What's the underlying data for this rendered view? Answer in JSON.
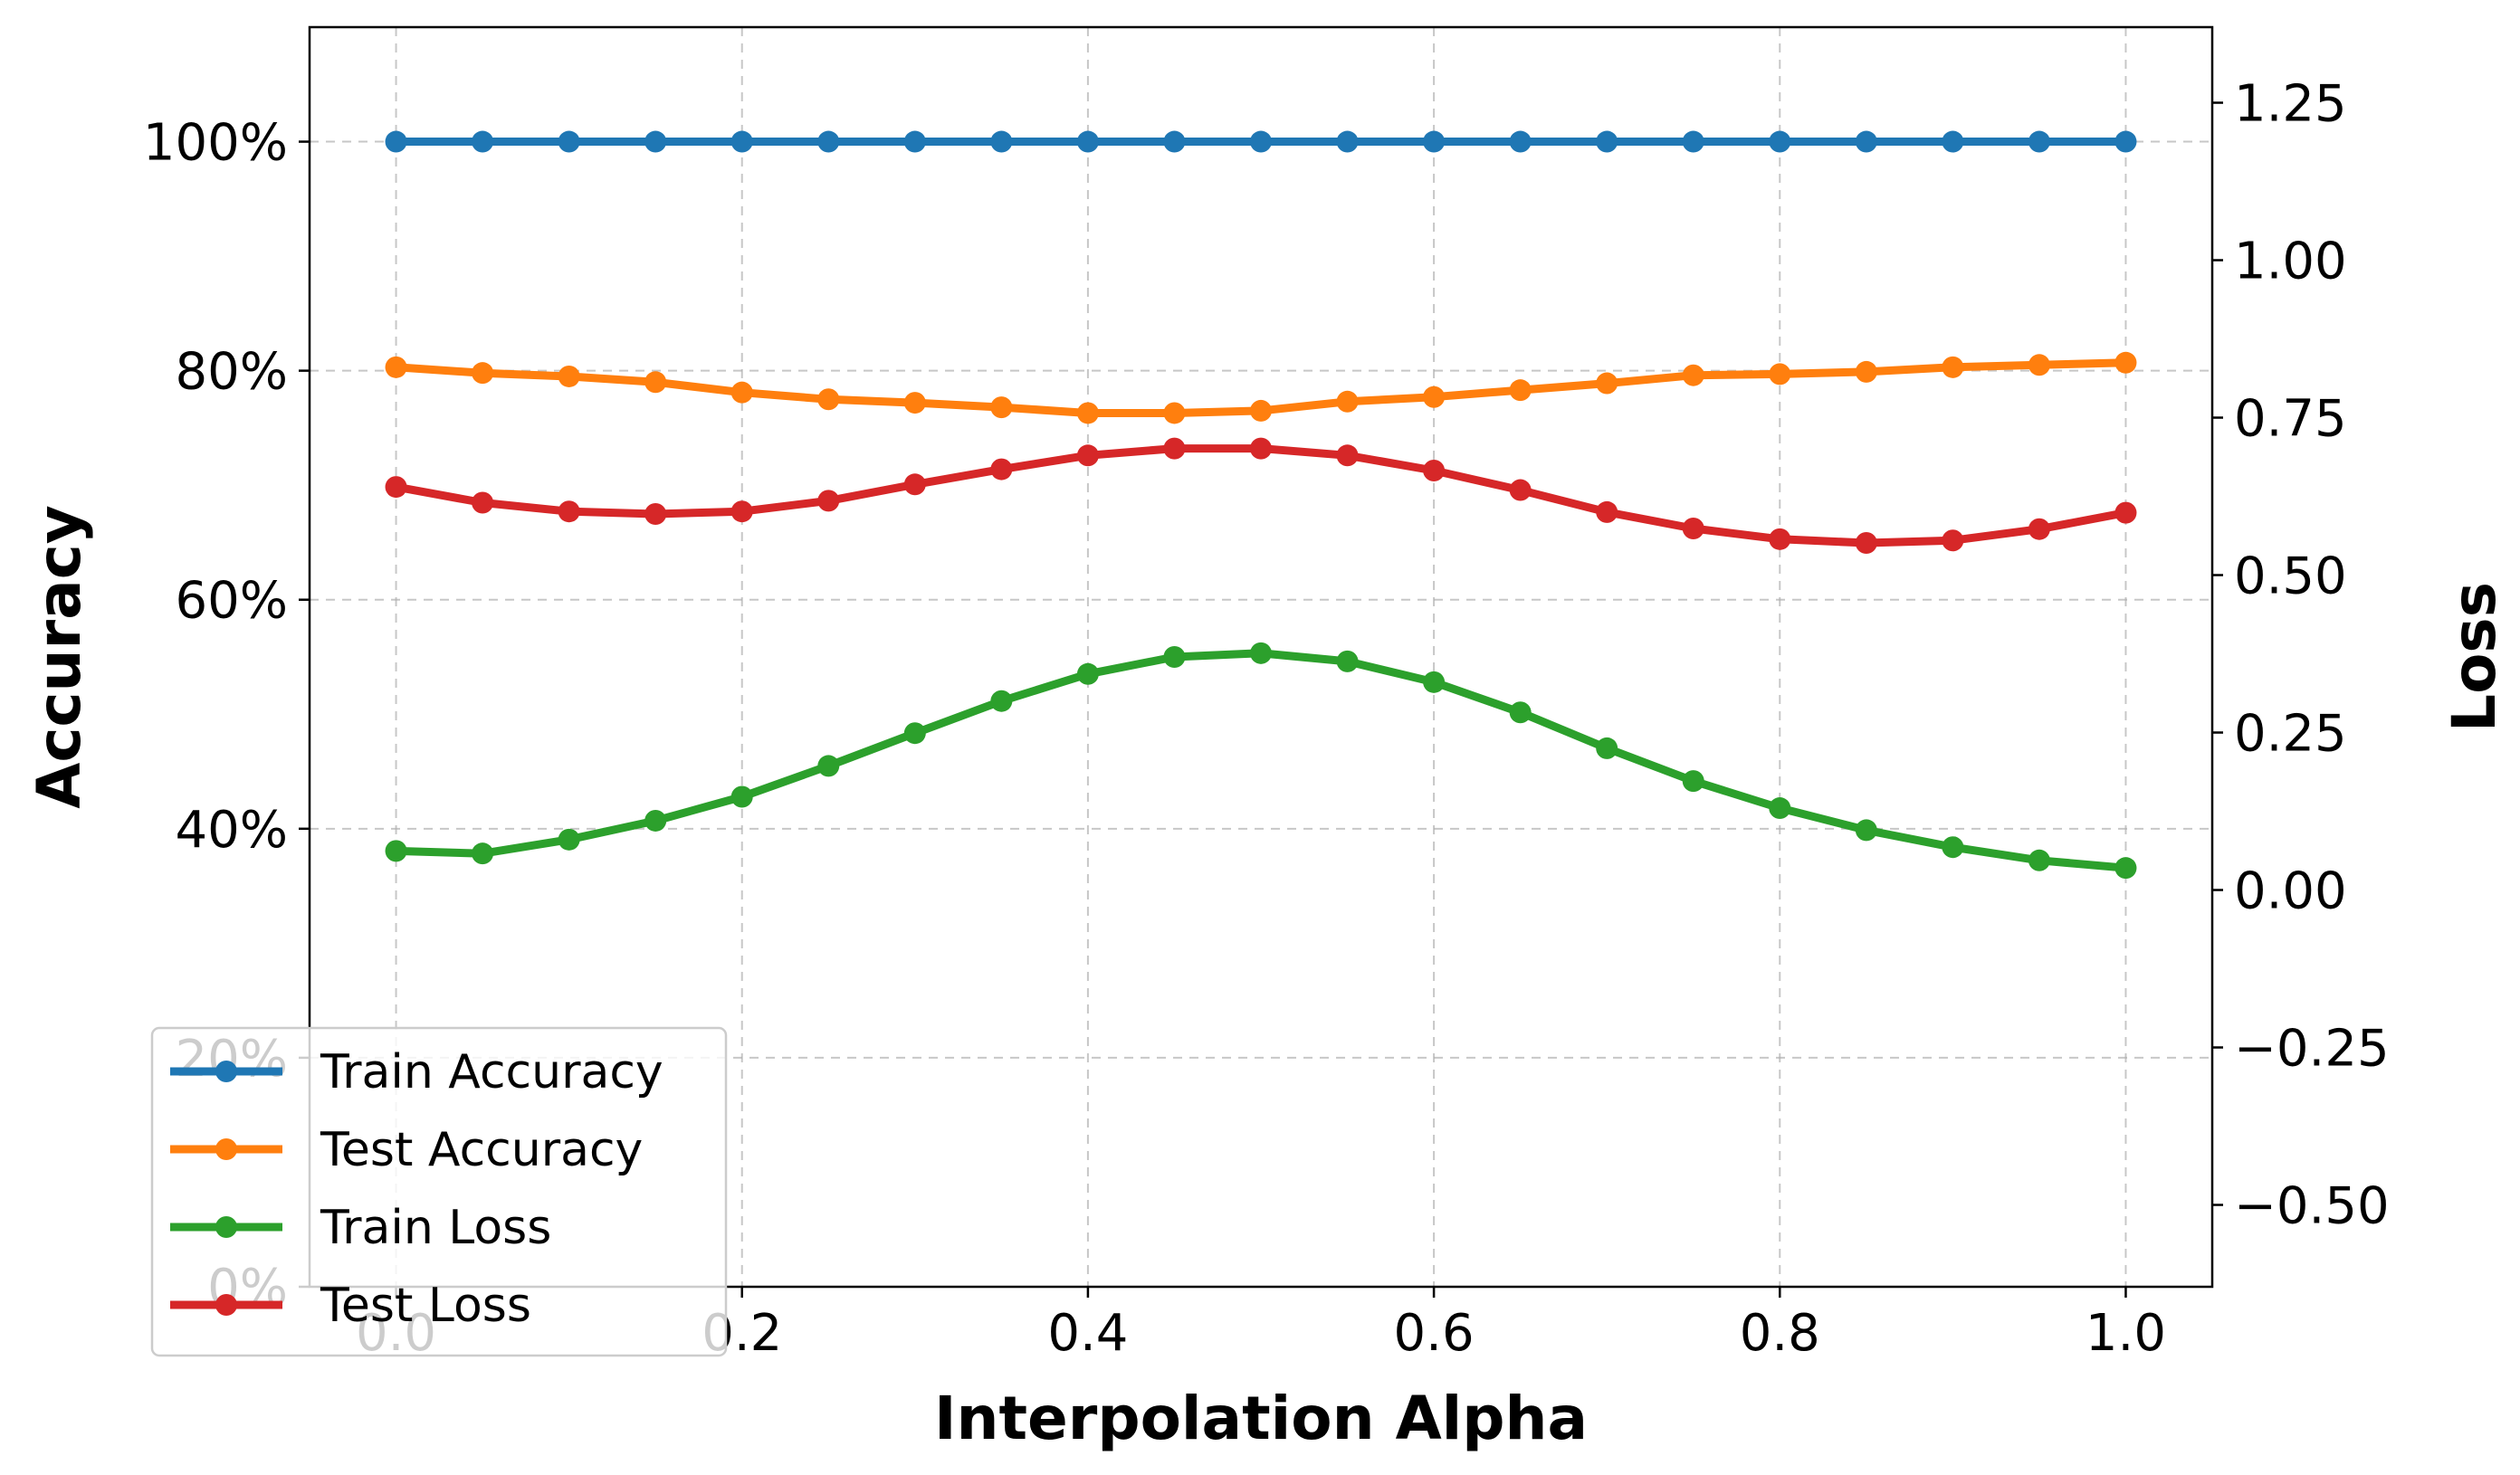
{
  "chart_data": {
    "type": "line",
    "title": "",
    "xlabel": "Interpolation Alpha",
    "ylabel": "Accuracy",
    "y2label": "Loss",
    "x": [
      0.0,
      0.05,
      0.1,
      0.15,
      0.2,
      0.25,
      0.3,
      0.35,
      0.4,
      0.45,
      0.5,
      0.55,
      0.6,
      0.65,
      0.7,
      0.75,
      0.8,
      0.85,
      0.9,
      0.95,
      1.0
    ],
    "xlim": [
      -0.05,
      1.05
    ],
    "ylim": [
      0,
      110
    ],
    "y2lim": [
      -0.63,
      1.37
    ],
    "xticks": [
      0.0,
      0.2,
      0.4,
      0.6,
      0.8,
      1.0
    ],
    "xtick_labels": [
      "0.0",
      "0.2",
      "0.4",
      "0.6",
      "0.8",
      "1.0"
    ],
    "yticks": [
      0,
      20,
      40,
      60,
      80,
      100
    ],
    "ytick_labels": [
      "0%",
      "20%",
      "40%",
      "60%",
      "80%",
      "100%"
    ],
    "y2ticks": [
      -0.5,
      -0.25,
      0.0,
      0.25,
      0.5,
      0.75,
      1.0,
      1.25
    ],
    "y2tick_labels": [
      "−0.50",
      "−0.25",
      "0.00",
      "0.25",
      "0.50",
      "0.75",
      "1.00",
      "1.25"
    ],
    "grid": true,
    "legend_position": "lower-left",
    "series": [
      {
        "name": "Train Accuracy",
        "axis": "left",
        "color": "#1f77b4",
        "values": [
          100,
          100,
          100,
          100,
          100,
          100,
          100,
          100,
          100,
          100,
          100,
          100,
          100,
          100,
          100,
          100,
          100,
          100,
          100,
          100,
          100
        ]
      },
      {
        "name": "Test Accuracy",
        "axis": "left",
        "color": "#ff7f0e",
        "values": [
          80.3,
          79.8,
          79.5,
          79.0,
          78.1,
          77.5,
          77.2,
          76.8,
          76.3,
          76.3,
          76.5,
          77.3,
          77.7,
          78.3,
          78.9,
          79.6,
          79.7,
          79.9,
          80.3,
          80.5,
          80.7
        ]
      },
      {
        "name": "Train Loss",
        "axis": "right",
        "color": "#2ca02c",
        "values": [
          0.062,
          0.058,
          0.08,
          0.11,
          0.148,
          0.197,
          0.249,
          0.3,
          0.343,
          0.37,
          0.376,
          0.363,
          0.33,
          0.282,
          0.225,
          0.173,
          0.13,
          0.095,
          0.068,
          0.047,
          0.035
        ]
      },
      {
        "name": "Test Loss",
        "axis": "right",
        "color": "#d62728",
        "values": [
          0.64,
          0.615,
          0.601,
          0.597,
          0.601,
          0.618,
          0.644,
          0.668,
          0.69,
          0.701,
          0.701,
          0.69,
          0.666,
          0.635,
          0.6,
          0.574,
          0.557,
          0.551,
          0.555,
          0.573,
          0.599
        ]
      }
    ]
  }
}
